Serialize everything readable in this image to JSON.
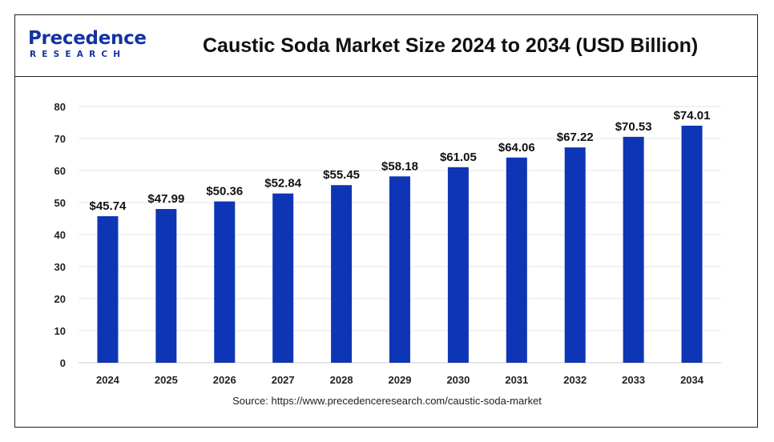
{
  "header": {
    "logo_word": "Precedence",
    "logo_sub": "RESEARCH",
    "title": "Caustic Soda Market Size 2024 to 2034 (USD Billion)"
  },
  "source": "Source: https://www.precedenceresearch.com/caustic-soda-market",
  "colors": {
    "bar": "#0d35b5",
    "brand": "#1533a2"
  },
  "chart_data": {
    "type": "bar",
    "categories": [
      "2024",
      "2025",
      "2026",
      "2027",
      "2028",
      "2029",
      "2030",
      "2031",
      "2032",
      "2033",
      "2034"
    ],
    "values": [
      45.74,
      47.99,
      50.36,
      52.84,
      55.45,
      58.18,
      61.05,
      64.06,
      67.22,
      70.53,
      74.01
    ],
    "data_labels": [
      "$45.74",
      "$47.99",
      "$50.36",
      "$52.84",
      "$55.45",
      "$58.18",
      "$61.05",
      "$64.06",
      "$67.22",
      "$70.53",
      "$74.01"
    ],
    "ylim": [
      0,
      80
    ],
    "yticks": [
      0,
      10,
      20,
      30,
      40,
      50,
      60,
      70,
      80
    ],
    "grid": true,
    "legend": "none"
  }
}
